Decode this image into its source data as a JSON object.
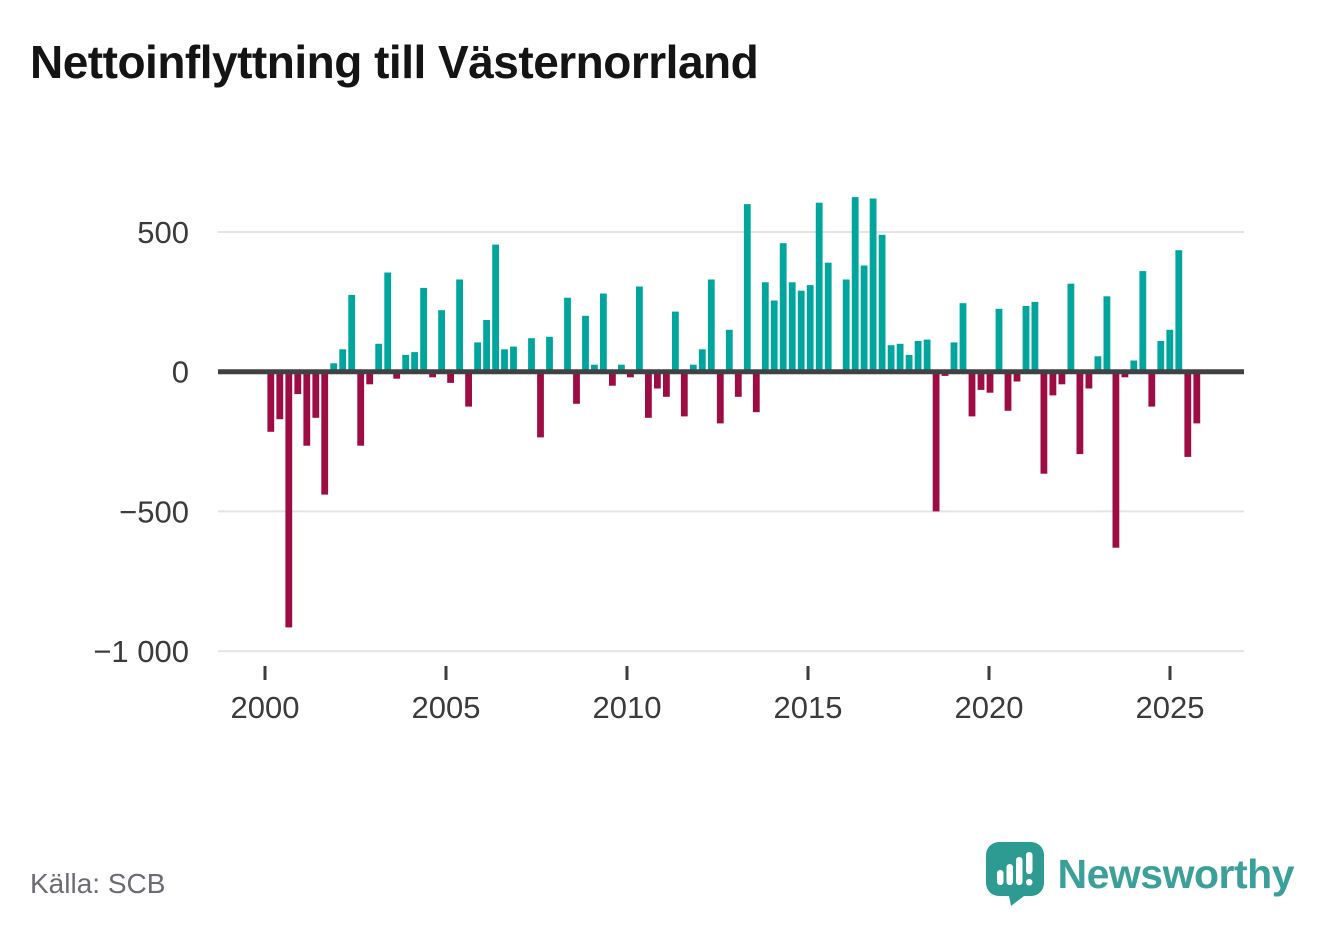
{
  "title": "Nettoinflyttning till Västernorrland",
  "source_label": "Källa: SCB",
  "branding": {
    "name": "Newsworthy",
    "icon": "speech-bubble-bar-chart-icon"
  },
  "colors": {
    "positive_bar": "#00a69d",
    "negative_bar": "#9e0c44",
    "zero_line": "#414141",
    "gridline": "#e4e4e4",
    "axis_text": "#3b3b3b",
    "tick_mark": "#3d3d3d",
    "title_text": "#141414",
    "source_text": "#6b6b73",
    "brand_teal": "#3aa099",
    "brand_icon_teal": "#2d9b92"
  },
  "chart_data": {
    "type": "bar",
    "title": "Nettoinflyttning till Västernorrland",
    "frequency": "quarterly",
    "start_period": "2000 Q1",
    "end_period": "2025 Q4",
    "xlabel": "",
    "ylabel": "",
    "ylim": [
      -1050,
      700
    ],
    "grid": true,
    "legend": false,
    "y_ticks": [
      500,
      0,
      -500,
      -1000
    ],
    "y_tick_labels": [
      "500",
      "0",
      "−500",
      "−1 000"
    ],
    "x_tick_years": [
      2000,
      2005,
      2010,
      2015,
      2020,
      2025
    ],
    "x_tick_labels": [
      "2000",
      "2005",
      "2010",
      "2015",
      "2020",
      "2025"
    ],
    "values": [
      -215,
      -170,
      -915,
      -80,
      -265,
      -165,
      -440,
      30,
      80,
      275,
      -265,
      -45,
      100,
      355,
      -25,
      60,
      70,
      300,
      -20,
      220,
      -40,
      330,
      -125,
      105,
      185,
      455,
      80,
      90,
      0,
      120,
      -235,
      125,
      0,
      265,
      -115,
      200,
      25,
      280,
      -50,
      25,
      -20,
      305,
      -165,
      -60,
      -90,
      215,
      -160,
      25,
      80,
      330,
      -185,
      150,
      -90,
      600,
      -145,
      320,
      255,
      460,
      320,
      290,
      310,
      605,
      390,
      0,
      330,
      625,
      380,
      620,
      490,
      95,
      100,
      60,
      110,
      115,
      -500,
      -15,
      105,
      245,
      -160,
      -65,
      -75,
      225,
      -140,
      -35,
      235,
      250,
      -365,
      -85,
      -45,
      315,
      -295,
      -60,
      55,
      270,
      -630,
      -20,
      40,
      360,
      -125,
      110,
      150,
      435,
      -305,
      -185
    ]
  }
}
